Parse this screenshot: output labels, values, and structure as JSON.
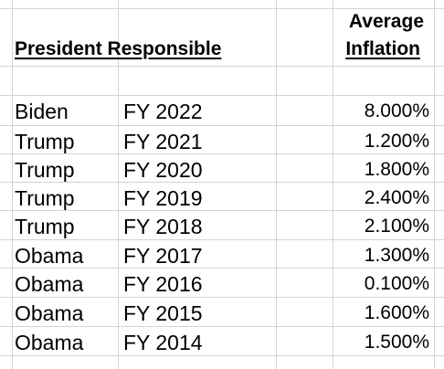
{
  "header": {
    "president_label": "President Responsible",
    "inflation_label_line1": "Average",
    "inflation_label_line2": "Inflation"
  },
  "rows": [
    {
      "president": "Biden",
      "fiscal_year": "FY 2022",
      "inflation": "8.000%"
    },
    {
      "president": "Trump",
      "fiscal_year": "FY 2021",
      "inflation": "1.200%"
    },
    {
      "president": "Trump",
      "fiscal_year": "FY 2020",
      "inflation": "1.800%"
    },
    {
      "president": "Trump",
      "fiscal_year": "FY 2019",
      "inflation": "2.400%"
    },
    {
      "president": "Trump",
      "fiscal_year": "FY 2018",
      "inflation": "2.100%"
    },
    {
      "president": "Obama",
      "fiscal_year": "FY 2017",
      "inflation": "1.300%"
    },
    {
      "president": "Obama",
      "fiscal_year": "FY 2016",
      "inflation": "0.100%"
    },
    {
      "president": "Obama",
      "fiscal_year": "FY 2015",
      "inflation": "1.600%"
    },
    {
      "president": "Obama",
      "fiscal_year": "FY 2014",
      "inflation": "1.500%"
    }
  ]
}
